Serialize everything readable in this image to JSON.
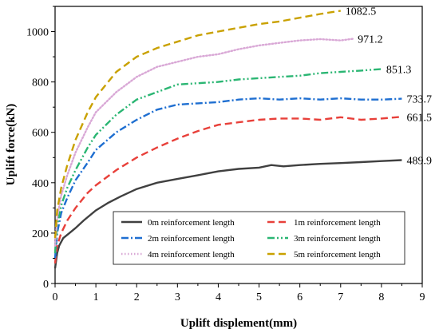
{
  "chart_data": {
    "type": "line",
    "title": "",
    "xlabel": "Uplift displement(mm)",
    "ylabel": "Uplift force(kN)",
    "xlim": [
      0,
      9
    ],
    "ylim": [
      0,
      1100
    ],
    "x_ticks": [
      "0",
      "1",
      "2",
      "3",
      "4",
      "5",
      "6",
      "7",
      "8",
      "9"
    ],
    "y_ticks": [
      "0",
      "200",
      "400",
      "600",
      "800",
      "1000"
    ],
    "grid": false,
    "legend": {
      "placement": "bottom-right",
      "columns": 2
    },
    "series": [
      {
        "name": "0m reinforcement length",
        "color": "#404040",
        "dash": "solid",
        "end_label": "489.9",
        "points": [
          [
            0,
            60
          ],
          [
            0.05,
            120
          ],
          [
            0.1,
            150
          ],
          [
            0.2,
            180
          ],
          [
            0.35,
            200
          ],
          [
            0.5,
            220
          ],
          [
            0.7,
            250
          ],
          [
            1.0,
            290
          ],
          [
            1.3,
            320
          ],
          [
            1.6,
            345
          ],
          [
            2.0,
            375
          ],
          [
            2.5,
            400
          ],
          [
            3.0,
            415
          ],
          [
            3.5,
            430
          ],
          [
            4.0,
            445
          ],
          [
            4.5,
            455
          ],
          [
            5.0,
            460
          ],
          [
            5.3,
            470
          ],
          [
            5.6,
            465
          ],
          [
            6.0,
            470
          ],
          [
            6.5,
            475
          ],
          [
            7.0,
            478
          ],
          [
            7.5,
            482
          ],
          [
            8.0,
            486
          ],
          [
            8.5,
            489.9
          ]
        ]
      },
      {
        "name": "1m reinforcement length",
        "color": "#e8403a",
        "dash": "long-dash",
        "end_label": "661.5",
        "points": [
          [
            0,
            80
          ],
          [
            0.05,
            150
          ],
          [
            0.15,
            200
          ],
          [
            0.3,
            250
          ],
          [
            0.5,
            300
          ],
          [
            0.8,
            360
          ],
          [
            1.0,
            390
          ],
          [
            1.5,
            450
          ],
          [
            2.0,
            500
          ],
          [
            2.5,
            540
          ],
          [
            3.0,
            575
          ],
          [
            3.5,
            605
          ],
          [
            4.0,
            630
          ],
          [
            4.5,
            640
          ],
          [
            5.0,
            650
          ],
          [
            5.5,
            655
          ],
          [
            6.0,
            655
          ],
          [
            6.5,
            650
          ],
          [
            7.0,
            660
          ],
          [
            7.5,
            650
          ],
          [
            8.0,
            655
          ],
          [
            8.5,
            661.5
          ]
        ]
      },
      {
        "name": "2m reinforcement length",
        "color": "#1f6fd1",
        "dash": "dash-dot",
        "end_label": "733.7",
        "points": [
          [
            0,
            100
          ],
          [
            0.05,
            200
          ],
          [
            0.15,
            280
          ],
          [
            0.3,
            340
          ],
          [
            0.5,
            410
          ],
          [
            0.8,
            480
          ],
          [
            1.0,
            530
          ],
          [
            1.5,
            600
          ],
          [
            2.0,
            650
          ],
          [
            2.5,
            690
          ],
          [
            3.0,
            710
          ],
          [
            3.5,
            715
          ],
          [
            4.0,
            720
          ],
          [
            4.5,
            730
          ],
          [
            5.0,
            735
          ],
          [
            5.5,
            730
          ],
          [
            6.0,
            735
          ],
          [
            6.5,
            730
          ],
          [
            7.0,
            735
          ],
          [
            7.5,
            730
          ],
          [
            8.0,
            730
          ],
          [
            8.5,
            733.7
          ]
        ]
      },
      {
        "name": "3m reinforcement length",
        "color": "#2bb673",
        "dash": "dash-dot-dot",
        "end_label": "851.3",
        "points": [
          [
            0,
            120
          ],
          [
            0.05,
            230
          ],
          [
            0.15,
            310
          ],
          [
            0.3,
            380
          ],
          [
            0.5,
            450
          ],
          [
            0.8,
            540
          ],
          [
            1.0,
            590
          ],
          [
            1.5,
            670
          ],
          [
            2.0,
            730
          ],
          [
            2.5,
            760
          ],
          [
            3.0,
            790
          ],
          [
            3.5,
            795
          ],
          [
            4.0,
            800
          ],
          [
            4.5,
            810
          ],
          [
            5.0,
            815
          ],
          [
            5.5,
            820
          ],
          [
            6.0,
            825
          ],
          [
            6.5,
            835
          ],
          [
            7.0,
            840
          ],
          [
            7.5,
            845
          ],
          [
            8.0,
            851.3
          ]
        ]
      },
      {
        "name": "4m reinforcement length",
        "color": "#d9a8d6",
        "dash": "dotted",
        "end_label": "971.2",
        "points": [
          [
            0,
            150
          ],
          [
            0.05,
            260
          ],
          [
            0.15,
            350
          ],
          [
            0.3,
            430
          ],
          [
            0.5,
            520
          ],
          [
            0.8,
            620
          ],
          [
            1.0,
            680
          ],
          [
            1.5,
            760
          ],
          [
            2.0,
            820
          ],
          [
            2.5,
            860
          ],
          [
            3.0,
            880
          ],
          [
            3.5,
            900
          ],
          [
            4.0,
            910
          ],
          [
            4.5,
            930
          ],
          [
            5.0,
            945
          ],
          [
            5.5,
            955
          ],
          [
            6.0,
            965
          ],
          [
            6.5,
            970
          ],
          [
            7.0,
            965
          ],
          [
            7.3,
            971.2
          ]
        ]
      },
      {
        "name": "5m reinforcement length",
        "color": "#c9a100",
        "dash": "long-dash",
        "end_label": "1082.5",
        "points": [
          [
            0,
            180
          ],
          [
            0.05,
            290
          ],
          [
            0.15,
            380
          ],
          [
            0.3,
            470
          ],
          [
            0.5,
            570
          ],
          [
            0.8,
            680
          ],
          [
            1.0,
            740
          ],
          [
            1.5,
            840
          ],
          [
            2.0,
            900
          ],
          [
            2.5,
            935
          ],
          [
            3.0,
            960
          ],
          [
            3.5,
            985
          ],
          [
            4.0,
            1000
          ],
          [
            4.5,
            1015
          ],
          [
            5.0,
            1030
          ],
          [
            5.5,
            1040
          ],
          [
            6.0,
            1055
          ],
          [
            6.5,
            1070
          ],
          [
            7.0,
            1082.5
          ]
        ]
      }
    ]
  }
}
